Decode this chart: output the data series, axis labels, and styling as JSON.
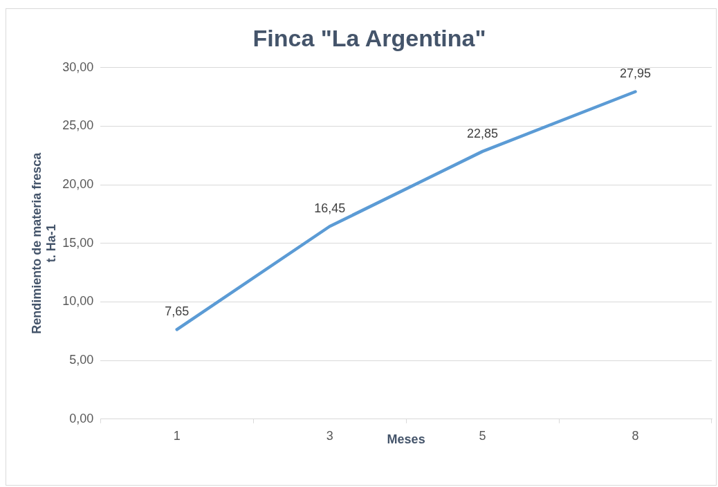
{
  "chart_data": {
    "type": "line",
    "title": "Finca \"La Argentina\"",
    "xlabel": "Meses",
    "ylabel": "Rendimiento de materia fresca\nt. Ha-1",
    "categories": [
      "1",
      "3",
      "5",
      "8"
    ],
    "series": [
      {
        "color": "#5b9bd5",
        "values": [
          7.65,
          16.45,
          22.85,
          27.95
        ],
        "value_labels": [
          "7,65",
          "16,45",
          "22,85",
          "27,95"
        ]
      }
    ],
    "ylim": [
      0,
      30
    ],
    "yticks": [
      {
        "value": 0,
        "label": "0,00"
      },
      {
        "value": 5,
        "label": "5,00"
      },
      {
        "value": 10,
        "label": "10,00"
      },
      {
        "value": 15,
        "label": "15,00"
      },
      {
        "value": 20,
        "label": "20,00"
      },
      {
        "value": 25,
        "label": "25,00"
      },
      {
        "value": 30,
        "label": "30,00"
      }
    ],
    "grid": "y",
    "legend": false,
    "marker": "none",
    "line_style": "solid"
  }
}
